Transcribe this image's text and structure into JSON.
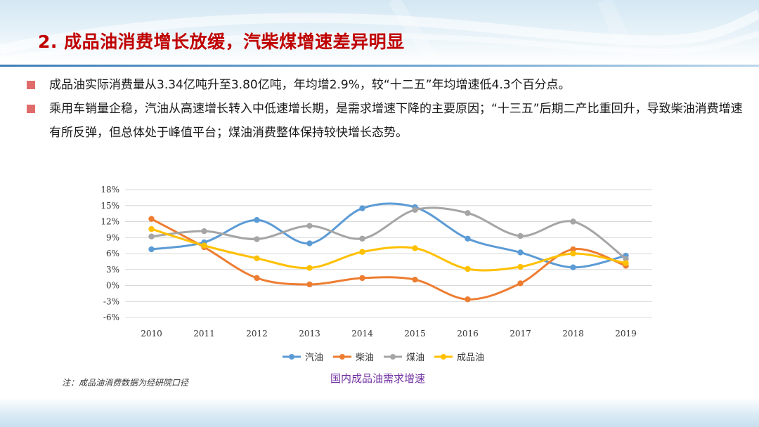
{
  "slide": {
    "title": "2.  成品油消费增长放缓，汽柴煤增速差异明显",
    "bullets": [
      "成品油实际消费量从3.34亿吨升至3.80亿吨，年均增2.9%，较“十二五”年均增速低4.3个百分点。",
      "乘用车销量企稳，汽油从高速增长转入中低速增长期，是需求增速下降的主要原因；“十三五”后期二产比重回升，导致柴油消费增速有所反弹，但总体处于峰值平台；煤油消费整体保持较快增长态势。"
    ],
    "note": "注：成品油消费数据为经研院口径",
    "chart_caption": "国内成品油需求增速"
  },
  "colors": {
    "title": "#c00000",
    "bullet_marker": "#e06b6b",
    "caption": "#7030a0"
  },
  "chart_data": {
    "type": "line",
    "smooth": true,
    "title": "国内成品油需求增速",
    "x": [
      "2010",
      "2011",
      "2012",
      "2013",
      "2014",
      "2015",
      "2016",
      "2017",
      "2018",
      "2019"
    ],
    "ylim": [
      -6,
      18
    ],
    "yticks": [
      -6,
      -3,
      0,
      3,
      6,
      9,
      12,
      15,
      18
    ],
    "ytick_labels": [
      "-6%",
      "-3%",
      "0%",
      "3%",
      "6%",
      "9%",
      "12%",
      "15%",
      "18%"
    ],
    "grid": true,
    "legend_position": "bottom",
    "series": [
      {
        "name": "汽油",
        "color": "#5b9bd5",
        "values": [
          6.8,
          8.1,
          12.3,
          7.9,
          14.5,
          14.7,
          8.8,
          6.2,
          3.4,
          5.6
        ]
      },
      {
        "name": "柴油",
        "color": "#ed7d31",
        "values": [
          12.5,
          7.2,
          1.4,
          0.2,
          1.4,
          1.1,
          -2.6,
          0.4,
          6.8,
          3.7
        ]
      },
      {
        "name": "煤油",
        "color": "#a5a5a5",
        "values": [
          9.2,
          10.2,
          8.7,
          11.2,
          8.8,
          14.2,
          13.6,
          9.3,
          12.0,
          5.0
        ]
      },
      {
        "name": "成品油",
        "color": "#ffc000",
        "values": [
          10.6,
          7.5,
          5.1,
          3.3,
          6.3,
          7.0,
          3.1,
          3.5,
          6.0,
          4.2
        ]
      }
    ]
  }
}
